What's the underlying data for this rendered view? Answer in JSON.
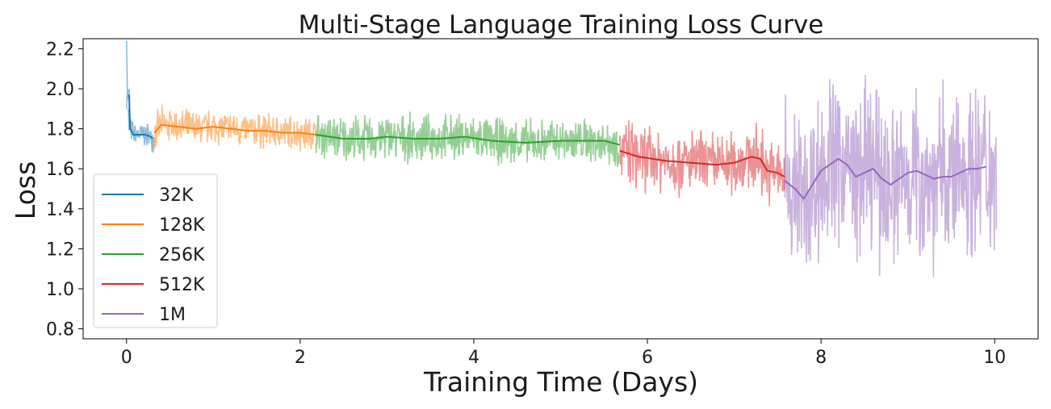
{
  "chart_data": {
    "type": "line",
    "title": "Multi-Stage Language Training Loss Curve",
    "xlabel": "Training Time (Days)",
    "ylabel": "Loss",
    "xlim": [
      -0.5,
      10.5
    ],
    "ylim": [
      0.75,
      2.25
    ],
    "xticks": [
      0,
      2,
      4,
      6,
      8,
      10
    ],
    "xtick_labels": [
      "0",
      "2",
      "4",
      "6",
      "8",
      "10"
    ],
    "yticks": [
      0.8,
      1.0,
      1.2,
      1.4,
      1.6,
      1.8,
      2.0,
      2.2
    ],
    "ytick_labels": [
      "0.8",
      "1.0",
      "1.2",
      "1.4",
      "1.6",
      "1.8",
      "2.0",
      "2.2"
    ],
    "grid": false,
    "legend_position": "bottom-left",
    "legend": [
      "32K",
      "128K",
      "256K",
      "512K",
      "1M"
    ],
    "series": [
      {
        "name": "32K",
        "color": "#1f77b4",
        "x_range": [
          0.0,
          0.32
        ],
        "raw_noise": 0.05,
        "raw_peaks": [
          [
            0.0,
            2.24
          ],
          [
            0.02,
            1.9
          ]
        ],
        "smoothed": [
          [
            0.03,
            1.97
          ],
          [
            0.04,
            1.8
          ],
          [
            0.08,
            1.77
          ],
          [
            0.15,
            1.77
          ],
          [
            0.22,
            1.77
          ],
          [
            0.28,
            1.76
          ],
          [
            0.3,
            1.75
          ]
        ]
      },
      {
        "name": "128K",
        "color": "#ff7f0e",
        "x_range": [
          0.32,
          2.18
        ],
        "raw_noise": 0.07,
        "raw_peaks": [],
        "smoothed": [
          [
            0.32,
            1.78
          ],
          [
            0.4,
            1.82
          ],
          [
            0.6,
            1.81
          ],
          [
            0.8,
            1.8
          ],
          [
            1.0,
            1.81
          ],
          [
            1.2,
            1.8
          ],
          [
            1.4,
            1.79
          ],
          [
            1.6,
            1.79
          ],
          [
            1.8,
            1.78
          ],
          [
            2.0,
            1.78
          ],
          [
            2.18,
            1.77
          ]
        ]
      },
      {
        "name": "256K",
        "color": "#2ca02c",
        "x_range": [
          2.18,
          5.68
        ],
        "raw_noise": 0.09,
        "raw_peaks": [],
        "smoothed": [
          [
            2.18,
            1.77
          ],
          [
            2.5,
            1.75
          ],
          [
            2.8,
            1.75
          ],
          [
            3.0,
            1.76
          ],
          [
            3.3,
            1.75
          ],
          [
            3.6,
            1.75
          ],
          [
            3.9,
            1.76
          ],
          [
            4.2,
            1.74
          ],
          [
            4.6,
            1.73
          ],
          [
            5.0,
            1.74
          ],
          [
            5.3,
            1.74
          ],
          [
            5.5,
            1.74
          ],
          [
            5.68,
            1.72
          ]
        ]
      },
      {
        "name": "512K",
        "color": "#d62728",
        "x_range": [
          5.68,
          7.58
        ],
        "raw_noise": 0.13,
        "raw_peaks": [],
        "smoothed": [
          [
            5.68,
            1.69
          ],
          [
            5.9,
            1.66
          ],
          [
            6.2,
            1.64
          ],
          [
            6.5,
            1.63
          ],
          [
            6.8,
            1.62
          ],
          [
            7.0,
            1.63
          ],
          [
            7.2,
            1.66
          ],
          [
            7.3,
            1.65
          ],
          [
            7.38,
            1.59
          ],
          [
            7.5,
            1.58
          ],
          [
            7.58,
            1.56
          ]
        ]
      },
      {
        "name": "1M",
        "color": "#9467bd",
        "x_range": [
          7.58,
          10.02
        ],
        "raw_noise": 0.35,
        "raw_peaks": [],
        "smoothed": [
          [
            7.58,
            1.54
          ],
          [
            7.7,
            1.5
          ],
          [
            7.8,
            1.45
          ],
          [
            7.9,
            1.52
          ],
          [
            8.0,
            1.59
          ],
          [
            8.1,
            1.62
          ],
          [
            8.2,
            1.65
          ],
          [
            8.3,
            1.62
          ],
          [
            8.4,
            1.56
          ],
          [
            8.5,
            1.58
          ],
          [
            8.6,
            1.6
          ],
          [
            8.7,
            1.55
          ],
          [
            8.8,
            1.52
          ],
          [
            8.9,
            1.55
          ],
          [
            9.0,
            1.58
          ],
          [
            9.1,
            1.59
          ],
          [
            9.2,
            1.57
          ],
          [
            9.3,
            1.55
          ],
          [
            9.4,
            1.56
          ],
          [
            9.5,
            1.56
          ],
          [
            9.6,
            1.58
          ],
          [
            9.7,
            1.6
          ],
          [
            9.8,
            1.6
          ],
          [
            9.9,
            1.61
          ]
        ]
      }
    ]
  }
}
